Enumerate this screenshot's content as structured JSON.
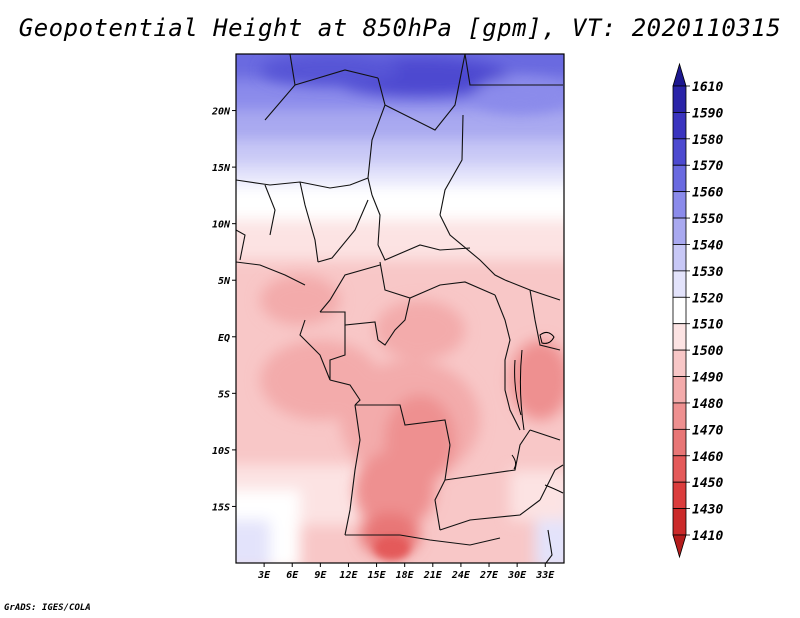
{
  "title": "Geopotential Height at 850hPa [gpm], VT: 2020110315",
  "footer": "GrADS: IGES/COLA",
  "map": {
    "lat_labels": [
      "20N",
      "15N",
      "10N",
      "5N",
      "EQ",
      "5S",
      "10S",
      "15S"
    ],
    "lat_values": [
      20,
      15,
      10,
      5,
      0,
      -5,
      -10,
      -15
    ],
    "lon_labels": [
      "3E",
      "6E",
      "9E",
      "12E",
      "15E",
      "18E",
      "21E",
      "24E",
      "27E",
      "30E",
      "33E"
    ],
    "lon_values": [
      3,
      6,
      9,
      12,
      15,
      18,
      21,
      24,
      27,
      30,
      33
    ],
    "lat_range": [
      -20,
      25
    ],
    "lon_range": [
      0,
      35
    ]
  },
  "colorbar": {
    "levels": [
      "1410",
      "1430",
      "1450",
      "1460",
      "1470",
      "1480",
      "1490",
      "1500",
      "1510",
      "1520",
      "1530",
      "1540",
      "1550",
      "1560",
      "1570",
      "1580",
      "1590",
      "1610"
    ],
    "colors": [
      "#b41c1c",
      "#cb2a2a",
      "#db3d3d",
      "#e45a5a",
      "#e87676",
      "#ee9090",
      "#f3abab",
      "#f8c7c7",
      "#fce3e3",
      "#ffffff",
      "#e3e3fb",
      "#c8c8f6",
      "#a9a9f0",
      "#8b8beb",
      "#6a6ae0",
      "#4d4ad0",
      "#3a34bf",
      "#2a24a8",
      "#1d1890"
    ]
  }
}
